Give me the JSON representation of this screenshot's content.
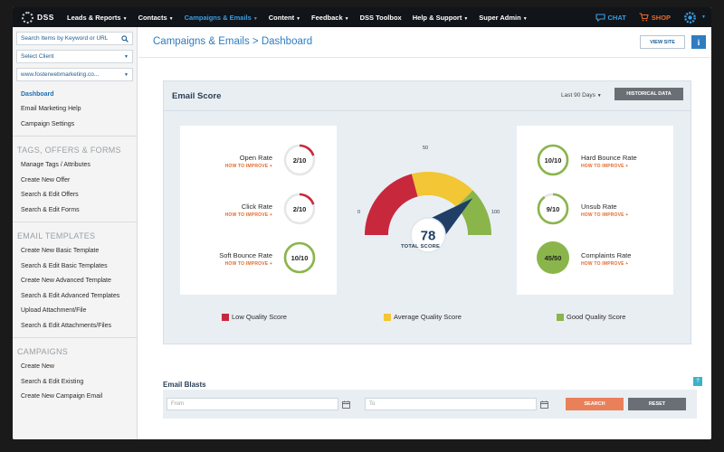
{
  "nav": {
    "logo": "DSS",
    "items": [
      {
        "label": "Leads & Reports",
        "active": false
      },
      {
        "label": "Contacts",
        "active": false
      },
      {
        "label": "Campaigns & Emails",
        "active": true
      },
      {
        "label": "Content",
        "active": false
      },
      {
        "label": "Feedback",
        "active": false
      },
      {
        "label": "DSS Toolbox",
        "active": false,
        "no_caret": true
      },
      {
        "label": "Help & Support",
        "active": false
      },
      {
        "label": "Super Admin",
        "active": false
      }
    ],
    "chat": "CHAT",
    "shop": "SHOP",
    "accent": "#3a9ee4",
    "shop_color": "#e46a2c"
  },
  "sidebar": {
    "search_placeholder": "Search Items by Keyword or URL",
    "client_select": "Select Client",
    "site_select": "www.fosterwebmarketing.co...",
    "top_links": [
      "Dashboard",
      "Email Marketing Help",
      "Campaign Settings"
    ],
    "sections": [
      {
        "title": "TAGS, OFFERS & FORMS",
        "links": [
          "Manage Tags / Attributes",
          "Create New Offer",
          "Search & Edit Offers",
          "Search & Edit Forms"
        ]
      },
      {
        "title": "EMAIL TEMPLATES",
        "links": [
          "Create New Basic Template",
          "Search & Edit Basic Templates",
          "Create New Advanced Template",
          "Search & Edit Advanced Templates",
          "Upload Attachment/File",
          "Search & Edit Attachments/Files"
        ]
      },
      {
        "title": "CAMPAIGNS",
        "links": [
          "Create New",
          "Search & Edit Existing",
          "Create New Campaign Email"
        ]
      }
    ]
  },
  "page": {
    "title": "Campaigns & Emails > Dashboard",
    "view_site": "VIEW SITE",
    "info": "i"
  },
  "email_score": {
    "title": "Email Score",
    "range": "Last 90 Days",
    "historical": "HISTORICAL DATA",
    "how_to_improve": "HOW TO IMPROVE +",
    "left_metrics": [
      {
        "label": "Open Rate",
        "value": "2/10",
        "fraction": 0.2,
        "color": "#c8283c"
      },
      {
        "label": "Click Rate",
        "value": "2/10",
        "fraction": 0.2,
        "color": "#c8283c"
      },
      {
        "label": "Soft Bounce Rate",
        "value": "10/10",
        "fraction": 1.0,
        "color": "#8ab54a"
      }
    ],
    "right_metrics": [
      {
        "label": "Hard Bounce Rate",
        "value": "10/10",
        "fraction": 1.0,
        "color": "#8ab54a",
        "filled": false
      },
      {
        "label": "Unsub Rate",
        "value": "9/10",
        "fraction": 0.9,
        "color": "#8ab54a",
        "filled": false
      },
      {
        "label": "Complaints Rate",
        "value": "45/50",
        "fraction": 0.9,
        "color": "#8ab54a",
        "filled": true
      }
    ],
    "gauge": {
      "score": "78",
      "score_value": 78,
      "min": "0",
      "mid": "50",
      "max": "100",
      "label": "TOTAL SCORE",
      "colors": {
        "low": "#c8283c",
        "avg": "#f2c634",
        "good": "#8ab54a",
        "needle": "#1f3f66"
      }
    },
    "legend": [
      {
        "label": "Low Quality Score",
        "color": "#c8283c"
      },
      {
        "label": "Average Quality Score",
        "color": "#f2c634"
      },
      {
        "label": "Good Quality Score",
        "color": "#8ab54a"
      }
    ]
  },
  "blasts": {
    "title": "Email Blasts",
    "help": "?",
    "from_placeholder": "From",
    "to_placeholder": "To",
    "search": "SEARCH",
    "reset": "RESET",
    "search_color": "#e9805a",
    "reset_color": "#6a6f75"
  }
}
